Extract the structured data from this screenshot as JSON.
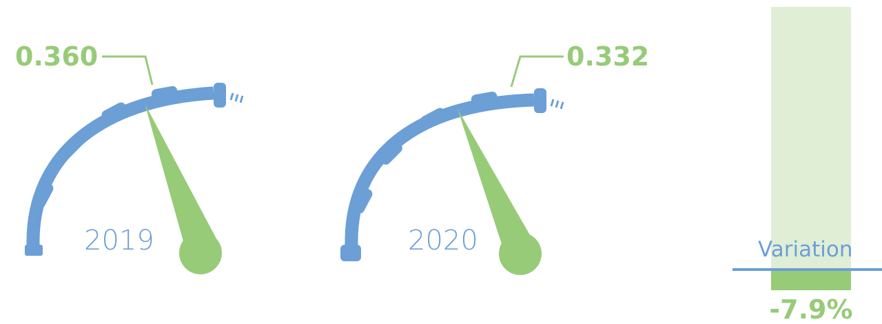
{
  "colors": {
    "arc": "#6b9fd6",
    "needle": "#97cb78",
    "bar_light": "#e0eed6",
    "bar": "#97cb78"
  },
  "chart_data": [
    {
      "type": "gauge",
      "label": "2019",
      "value": 0.36,
      "value_text": "0.360"
    },
    {
      "type": "gauge",
      "label": "2020",
      "value": 0.332,
      "value_text": "0.332"
    },
    {
      "type": "bar",
      "label": "Variation",
      "value": -7.9,
      "value_text": "-7.9%"
    }
  ]
}
